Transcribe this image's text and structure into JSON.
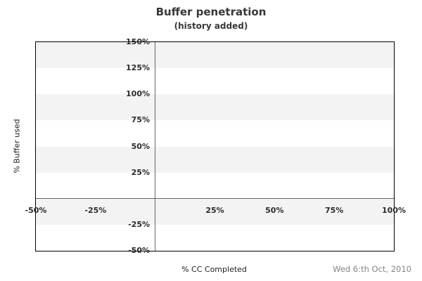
{
  "header": {
    "title": "Buffer penetration",
    "subtitle": "(history added)"
  },
  "footer": {
    "xlabel": "% CC Completed",
    "date": "Wed 6:th Oct, 2010"
  },
  "chart_data": {
    "type": "line",
    "title": "Buffer penetration",
    "subtitle": "(history added)",
    "xlabel": "% CC Completed",
    "ylabel": "% Buffer used",
    "xlim": [
      -50,
      100
    ],
    "ylim": [
      -50,
      150
    ],
    "x_ticks": [
      {
        "value": -50,
        "label": "-50%"
      },
      {
        "value": -25,
        "label": "-25%"
      },
      {
        "value": 25,
        "label": "25%"
      },
      {
        "value": 50,
        "label": "50%"
      },
      {
        "value": 75,
        "label": "75%"
      },
      {
        "value": 100,
        "label": "100%"
      }
    ],
    "y_ticks": [
      {
        "value": 150,
        "label": "150%"
      },
      {
        "value": 125,
        "label": "125%"
      },
      {
        "value": 100,
        "label": "100%"
      },
      {
        "value": 75,
        "label": "75%"
      },
      {
        "value": 50,
        "label": "50%"
      },
      {
        "value": 25,
        "label": "25%"
      },
      {
        "value": -25,
        "label": "-25%"
      },
      {
        "value": -50,
        "label": "-50%"
      }
    ],
    "stripe_bands": [
      [
        150,
        125
      ],
      [
        100,
        75
      ],
      [
        50,
        25
      ],
      [
        0,
        -25
      ]
    ],
    "series": [],
    "note": "No data points are plotted; the chart area is empty",
    "grid": "alternating horizontal gray bands every 25%, zero axes drawn as gray lines",
    "legend_position": "none",
    "annotations": [
      "Wed 6:th Oct, 2010"
    ],
    "colors": {
      "stripe": "#f3f3f3",
      "plot_border": "#000000",
      "zero_axis": "#666666",
      "title_text": "#383838",
      "tick_text": "#2b2b2b",
      "axis_label_text": "#222222",
      "date_text": "#858585",
      "background": "#ffffff"
    }
  }
}
